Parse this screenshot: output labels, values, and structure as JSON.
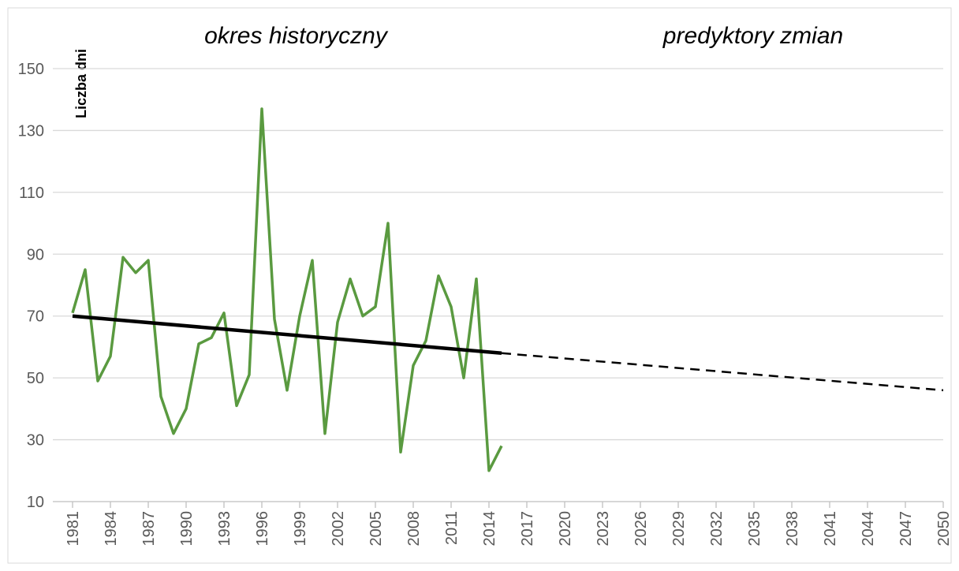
{
  "chart_data": {
    "type": "line",
    "annotations": [
      "okres historyczny",
      "predyktory zmian"
    ],
    "y_label": "Liczba dni",
    "xlim": [
      1981,
      2050
    ],
    "xticks": [
      1981,
      1984,
      1987,
      1990,
      1993,
      1996,
      1999,
      2002,
      2005,
      2008,
      2011,
      2014,
      2017,
      2020,
      2023,
      2026,
      2029,
      2032,
      2035,
      2038,
      2041,
      2044,
      2047,
      2050
    ],
    "ylim": [
      10,
      150
    ],
    "yticks": [
      10,
      30,
      50,
      70,
      90,
      110,
      130,
      150
    ],
    "grid": true,
    "series": [
      {
        "color": "#5a9a40",
        "linestyle": "solid",
        "x": [
          1981,
          1982,
          1983,
          1984,
          1985,
          1986,
          1987,
          1988,
          1989,
          1990,
          1991,
          1992,
          1993,
          1994,
          1995,
          1996,
          1997,
          1998,
          1999,
          2000,
          2001,
          2002,
          2003,
          2004,
          2005,
          2006,
          2007,
          2008,
          2009,
          2010,
          2011,
          2012,
          2013,
          2014,
          2015
        ],
        "values": [
          71,
          85,
          49,
          57,
          89,
          84,
          88,
          44,
          32,
          40,
          61,
          63,
          71,
          41,
          51,
          137,
          69,
          46,
          70,
          88,
          32,
          68,
          82,
          70,
          73,
          100,
          26,
          54,
          62,
          83,
          73,
          50,
          82,
          20,
          28
        ]
      },
      {
        "color": "#000000",
        "linestyle": "solid",
        "x": [
          1981,
          2015
        ],
        "values": [
          70,
          58
        ]
      },
      {
        "color": "#000000",
        "linestyle": "dashed",
        "x": [
          2015,
          2050
        ],
        "values": [
          58,
          46
        ]
      }
    ]
  }
}
